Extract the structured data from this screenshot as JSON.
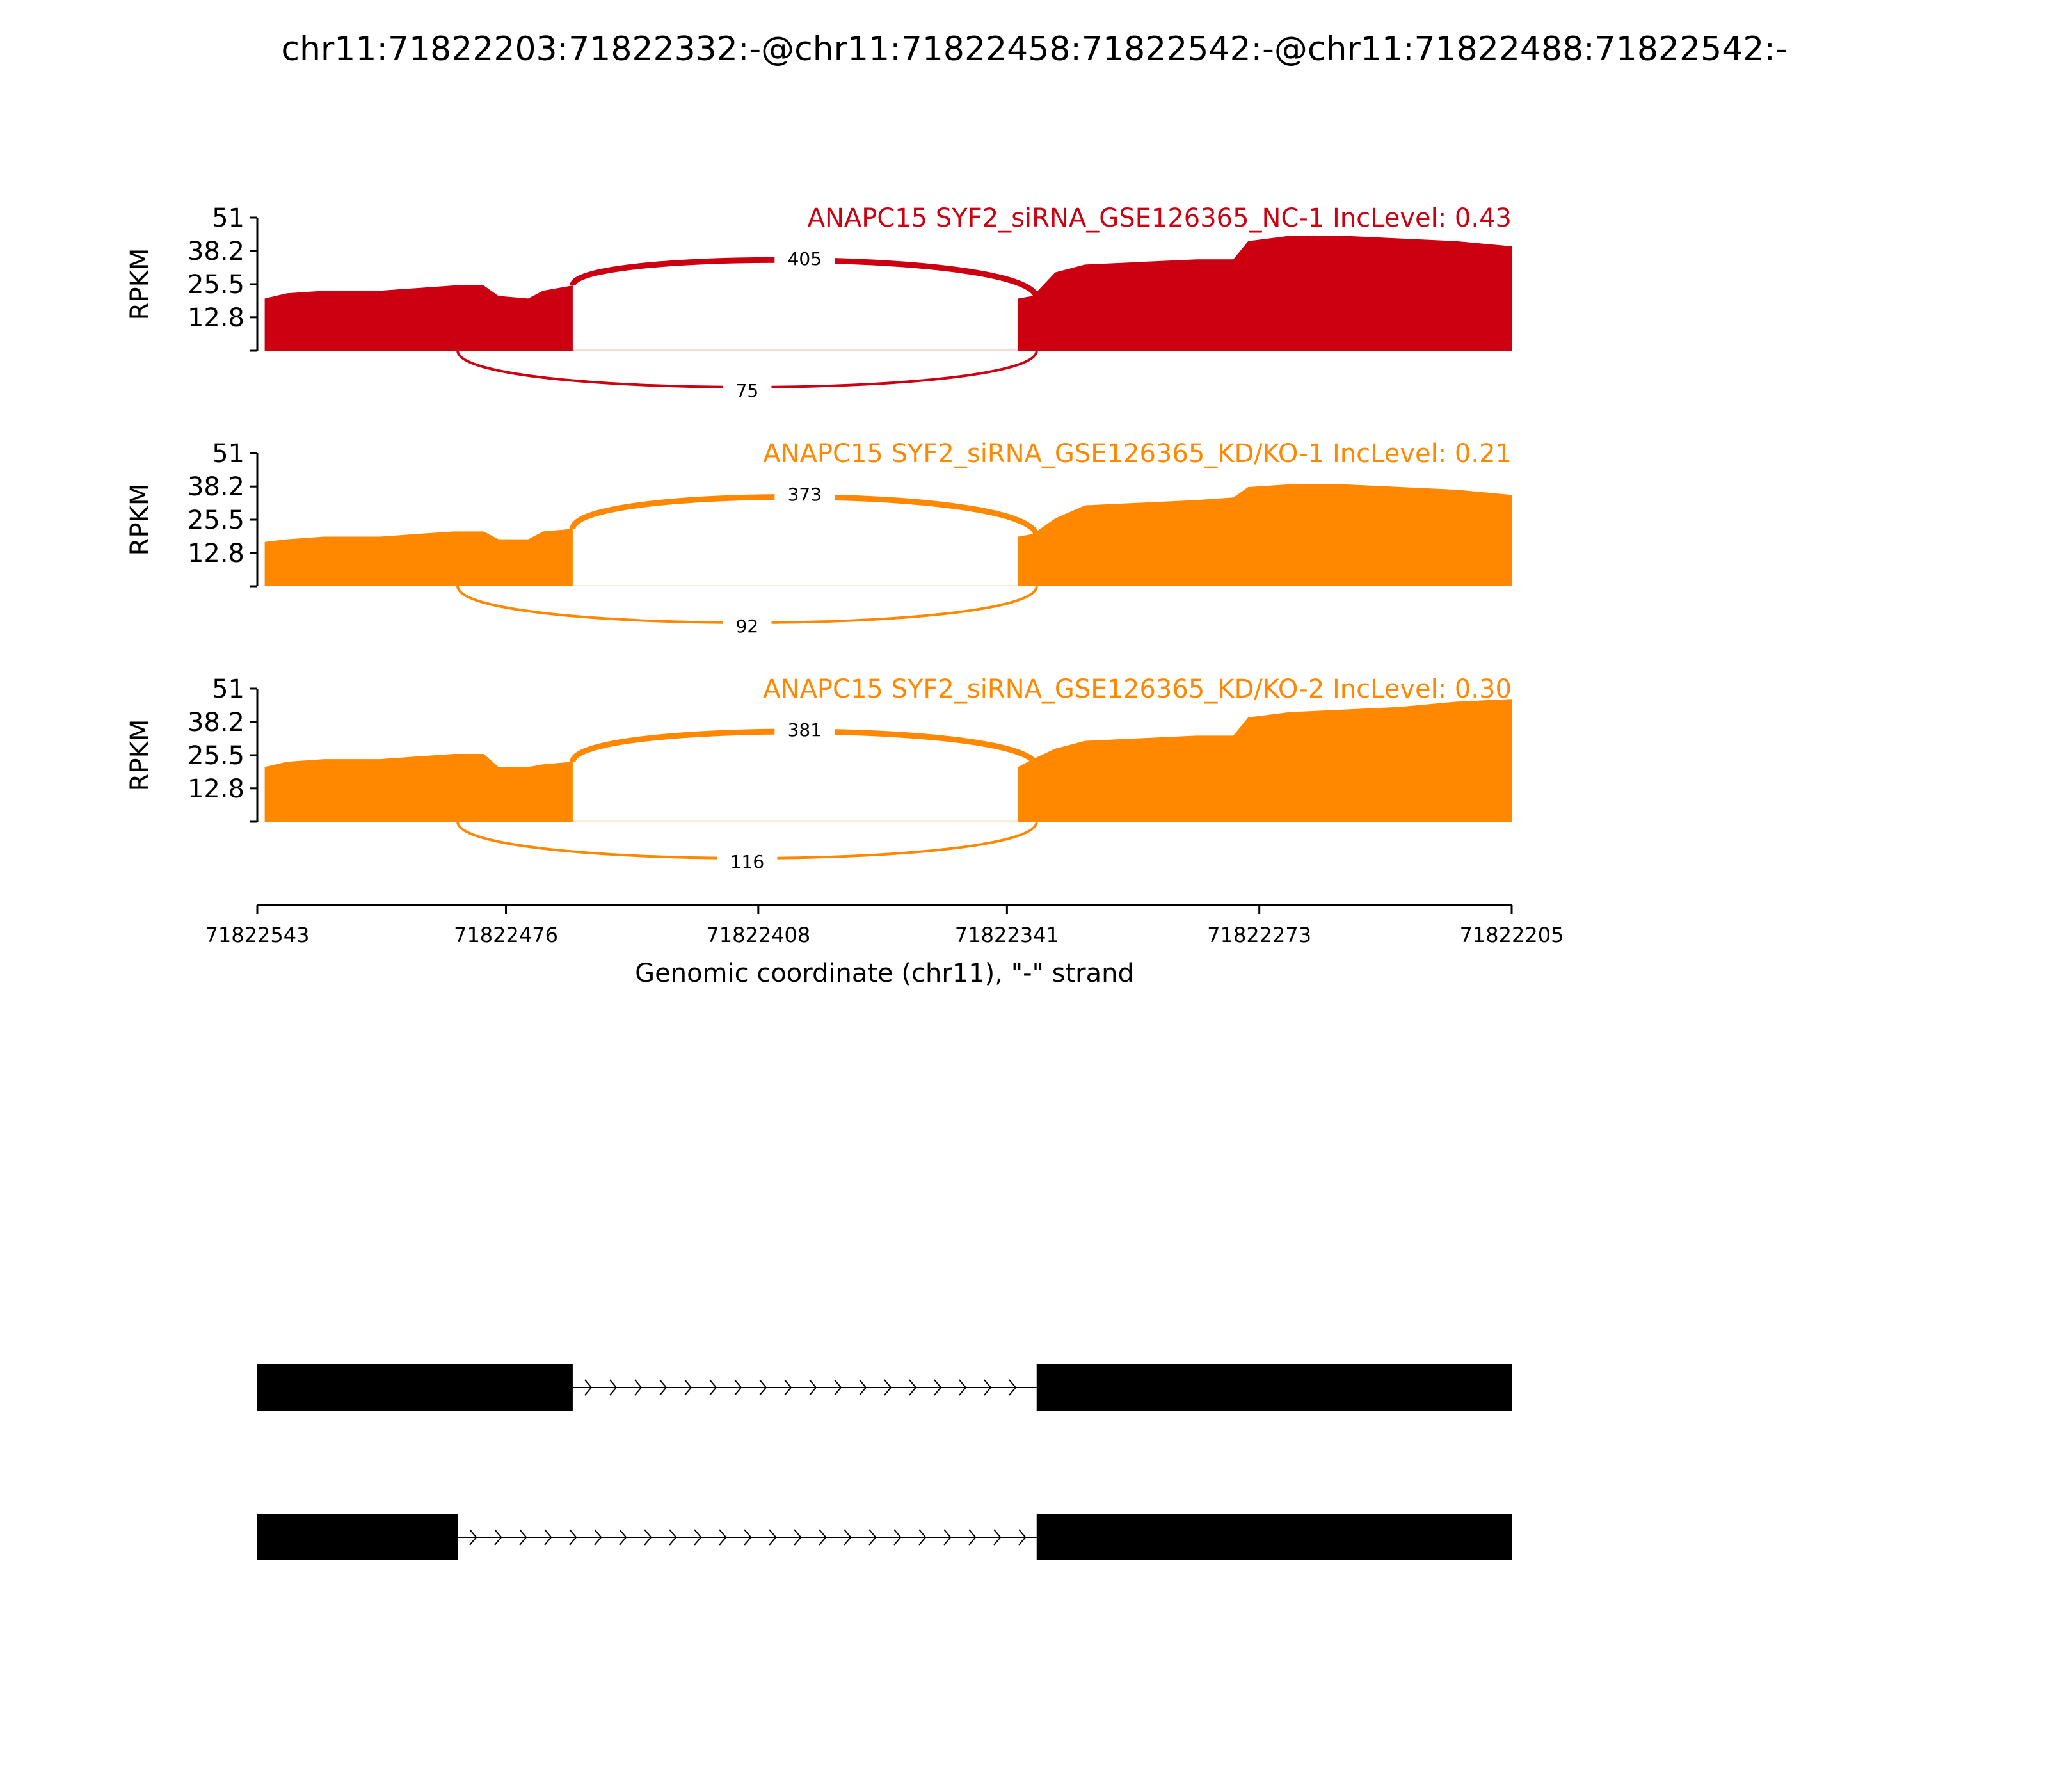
{
  "title": "chr11:71822203:71822332:-@chr11:71822458:71822542:-@chr11:71822488:71822542:-",
  "colors": {
    "nc": "#cc0011",
    "kd": "#ff8800",
    "axis": "#000000",
    "transcript": "#000000"
  },
  "chart_data": {
    "type": "area",
    "title": "chr11:71822203:71822332:-@chr11:71822458:71822542:-@chr11:71822488:71822542:-",
    "xlabel": "Genomic coordinate (chr11), \"-\" strand",
    "ylabel": "RPKM",
    "xlim": [
      71822543,
      71822205
    ],
    "x_ticks": [
      "71822543",
      "71822476",
      "71822408",
      "71822341",
      "71822273",
      "71822205"
    ],
    "ylim": [
      0,
      51
    ],
    "y_ticks": [
      "12.8",
      "25.5",
      "38.2",
      "51"
    ],
    "grid": false,
    "tracks": [
      {
        "label": "ANAPC15 SYF2_siRNA_GSE126365_NC-1 IncLevel: 0.43",
        "color": "#cc0011",
        "coverage": {
          "exon1": [
            [
              71822541,
              20
            ],
            [
              71822535,
              22
            ],
            [
              71822525,
              23
            ],
            [
              71822510,
              23
            ],
            [
              71822500,
              24
            ],
            [
              71822490,
              25
            ],
            [
              71822482,
              25
            ],
            [
              71822478,
              21
            ],
            [
              71822470,
              20
            ],
            [
              71822466,
              23
            ],
            [
              71822458,
              25
            ]
          ],
          "exon2": [
            [
              71822338,
              20
            ],
            [
              71822334,
              21
            ],
            [
              71822328,
              30
            ],
            [
              71822320,
              33
            ],
            [
              71822305,
              34
            ],
            [
              71822290,
              35
            ],
            [
              71822280,
              35
            ],
            [
              71822276,
              42
            ],
            [
              71822265,
              44
            ],
            [
              71822250,
              44
            ],
            [
              71822235,
              43
            ],
            [
              71822220,
              42
            ],
            [
              71822205,
              40
            ]
          ]
        },
        "junctions": [
          {
            "from": 71822458,
            "to": 71822333,
            "count": "405",
            "side": "top"
          },
          {
            "from": 71822489,
            "to": 71822333,
            "count": "75",
            "side": "bottom"
          }
        ]
      },
      {
        "label": "ANAPC15 SYF2_siRNA_GSE126365_KD/KO-1 IncLevel: 0.21",
        "color": "#ff8800",
        "coverage": {
          "exon1": [
            [
              71822541,
              17
            ],
            [
              71822535,
              18
            ],
            [
              71822525,
              19
            ],
            [
              71822510,
              19
            ],
            [
              71822500,
              20
            ],
            [
              71822490,
              21
            ],
            [
              71822482,
              21
            ],
            [
              71822478,
              18
            ],
            [
              71822470,
              18
            ],
            [
              71822466,
              21
            ],
            [
              71822458,
              22
            ]
          ],
          "exon2": [
            [
              71822338,
              19
            ],
            [
              71822334,
              20
            ],
            [
              71822328,
              26
            ],
            [
              71822320,
              31
            ],
            [
              71822305,
              32
            ],
            [
              71822290,
              33
            ],
            [
              71822280,
              34
            ],
            [
              71822276,
              38
            ],
            [
              71822265,
              39
            ],
            [
              71822250,
              39
            ],
            [
              71822235,
              38
            ],
            [
              71822220,
              37
            ],
            [
              71822205,
              35
            ]
          ]
        },
        "junctions": [
          {
            "from": 71822458,
            "to": 71822333,
            "count": "373",
            "side": "top"
          },
          {
            "from": 71822489,
            "to": 71822333,
            "count": "92",
            "side": "bottom"
          }
        ]
      },
      {
        "label": "ANAPC15 SYF2_siRNA_GSE126365_KD/KO-2 IncLevel: 0.30",
        "color": "#ff8800",
        "coverage": {
          "exon1": [
            [
              71822541,
              21
            ],
            [
              71822535,
              23
            ],
            [
              71822525,
              24
            ],
            [
              71822510,
              24
            ],
            [
              71822500,
              25
            ],
            [
              71822490,
              26
            ],
            [
              71822482,
              26
            ],
            [
              71822478,
              21
            ],
            [
              71822470,
              21
            ],
            [
              71822466,
              22
            ],
            [
              71822458,
              23
            ]
          ],
          "exon2": [
            [
              71822338,
              21
            ],
            [
              71822334,
              24
            ],
            [
              71822328,
              28
            ],
            [
              71822320,
              31
            ],
            [
              71822305,
              32
            ],
            [
              71822290,
              33
            ],
            [
              71822280,
              33
            ],
            [
              71822276,
              40
            ],
            [
              71822265,
              42
            ],
            [
              71822250,
              43
            ],
            [
              71822235,
              44
            ],
            [
              71822220,
              46
            ],
            [
              71822205,
              47
            ]
          ]
        },
        "junctions": [
          {
            "from": 71822458,
            "to": 71822333,
            "count": "381",
            "side": "top"
          },
          {
            "from": 71822489,
            "to": 71822333,
            "count": "116",
            "side": "bottom"
          }
        ]
      }
    ],
    "transcripts": [
      {
        "exons": [
          [
            71822543,
            71822458
          ],
          [
            71822333,
            71822205
          ]
        ]
      },
      {
        "exons": [
          [
            71822543,
            71822489
          ],
          [
            71822333,
            71822205
          ]
        ]
      }
    ]
  }
}
